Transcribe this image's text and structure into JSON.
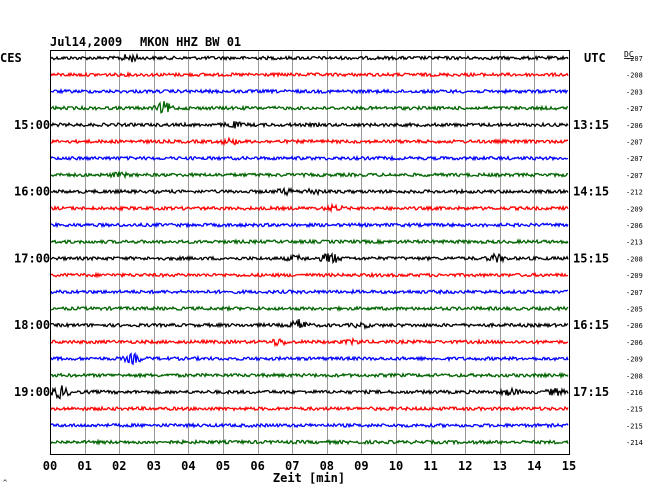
{
  "header": {
    "date": "Jul14,2009",
    "station": "MKON HHZ BW 01",
    "left_timezone": "CES",
    "right_timezone": "UTC",
    "dc_label": "DC"
  },
  "colors": {
    "trace_cycle": [
      "#000000",
      "#ff0000",
      "#0000ff",
      "#006400"
    ],
    "grid": "#999999",
    "frame": "#000000"
  },
  "chart_data": {
    "type": "line",
    "xlabel": "Zeit [min]",
    "xlim": [
      0,
      15
    ],
    "x_ticks": [
      "00",
      "01",
      "02",
      "03",
      "04",
      "05",
      "06",
      "07",
      "08",
      "09",
      "10",
      "11",
      "12",
      "13",
      "14",
      "15"
    ],
    "left_hour_labels": [
      {
        "row": 4,
        "label": "15:00"
      },
      {
        "row": 8,
        "label": "16:00"
      },
      {
        "row": 12,
        "label": "17:00"
      },
      {
        "row": 16,
        "label": "18:00"
      },
      {
        "row": 20,
        "label": "19:00"
      }
    ],
    "right_hour_labels": [
      {
        "row": 4,
        "label": "13:15"
      },
      {
        "row": 8,
        "label": "14:15"
      },
      {
        "row": 12,
        "label": "15:15"
      },
      {
        "row": 16,
        "label": "16:15"
      },
      {
        "row": 20,
        "label": "17:15"
      }
    ],
    "series": [
      {
        "dc": "-207",
        "events": [
          [
            2.3,
            0.6
          ]
        ]
      },
      {
        "dc": "-208",
        "events": []
      },
      {
        "dc": "-203",
        "events": []
      },
      {
        "dc": "-207",
        "events": [
          [
            3.3,
            0.9
          ]
        ]
      },
      {
        "dc": "-206",
        "events": [
          [
            5.3,
            0.4
          ]
        ]
      },
      {
        "dc": "-207",
        "events": [
          [
            5.2,
            0.4
          ]
        ]
      },
      {
        "dc": "-207",
        "events": []
      },
      {
        "dc": "-207",
        "events": [
          [
            2.0,
            0.3
          ]
        ]
      },
      {
        "dc": "-212",
        "events": [
          [
            6.8,
            0.4
          ],
          [
            7.6,
            0.4
          ]
        ]
      },
      {
        "dc": "-209",
        "events": [
          [
            8.2,
            0.4
          ]
        ]
      },
      {
        "dc": "-206",
        "events": []
      },
      {
        "dc": "-213",
        "events": []
      },
      {
        "dc": "-208",
        "events": [
          [
            7.1,
            0.4
          ],
          [
            8.1,
            0.9
          ],
          [
            12.9,
            0.6
          ]
        ]
      },
      {
        "dc": "-209",
        "events": []
      },
      {
        "dc": "-207",
        "events": []
      },
      {
        "dc": "-205",
        "events": []
      },
      {
        "dc": "-206",
        "events": [
          [
            7.2,
            0.8
          ],
          [
            9.0,
            0.3
          ]
        ]
      },
      {
        "dc": "-206",
        "events": [
          [
            6.6,
            0.5
          ],
          [
            8.8,
            0.3
          ]
        ]
      },
      {
        "dc": "-209",
        "events": [
          [
            2.4,
            0.7
          ]
        ]
      },
      {
        "dc": "-208",
        "events": []
      },
      {
        "dc": "-216",
        "events": [
          [
            0.3,
            1.0
          ],
          [
            13.3,
            0.5
          ],
          [
            14.6,
            0.5
          ]
        ]
      },
      {
        "dc": "-215",
        "events": []
      },
      {
        "dc": "-215",
        "events": []
      },
      {
        "dc": "-214",
        "events": []
      }
    ]
  }
}
